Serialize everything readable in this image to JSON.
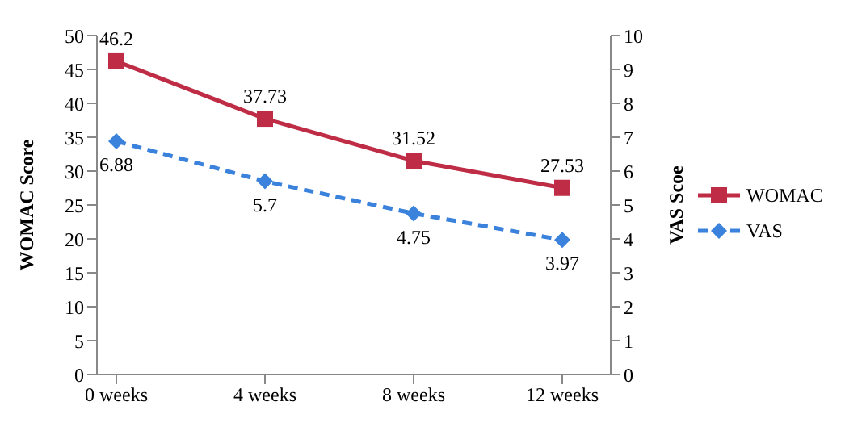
{
  "chart_data": {
    "type": "line",
    "categories": [
      "0 weeks",
      "4 weeks",
      "8 weeks",
      "12 weeks"
    ],
    "series": [
      {
        "name": "WOMAC",
        "color": "#be2d45",
        "values": [
          46.2,
          37.73,
          31.52,
          27.53
        ],
        "marker": "square",
        "line_style": "solid"
      },
      {
        "name": "VAS",
        "color": "#3a82dc",
        "values": [
          6.88,
          5.7,
          4.75,
          3.97
        ],
        "axis": "y2",
        "marker": "diamond",
        "line_style": "dashed"
      }
    ],
    "ylabel": "WOMAC Score",
    "y2label": "VAS Scoe",
    "ylim": [
      0,
      50
    ],
    "yticks": [
      0,
      5,
      10,
      15,
      20,
      25,
      30,
      35,
      40,
      45,
      50
    ],
    "y2lim": [
      0,
      10
    ],
    "y2ticks": [
      0,
      1,
      2,
      3,
      4,
      5,
      6,
      7,
      8,
      9,
      10
    ],
    "data_labels": true,
    "legend": "right",
    "grid": false
  }
}
